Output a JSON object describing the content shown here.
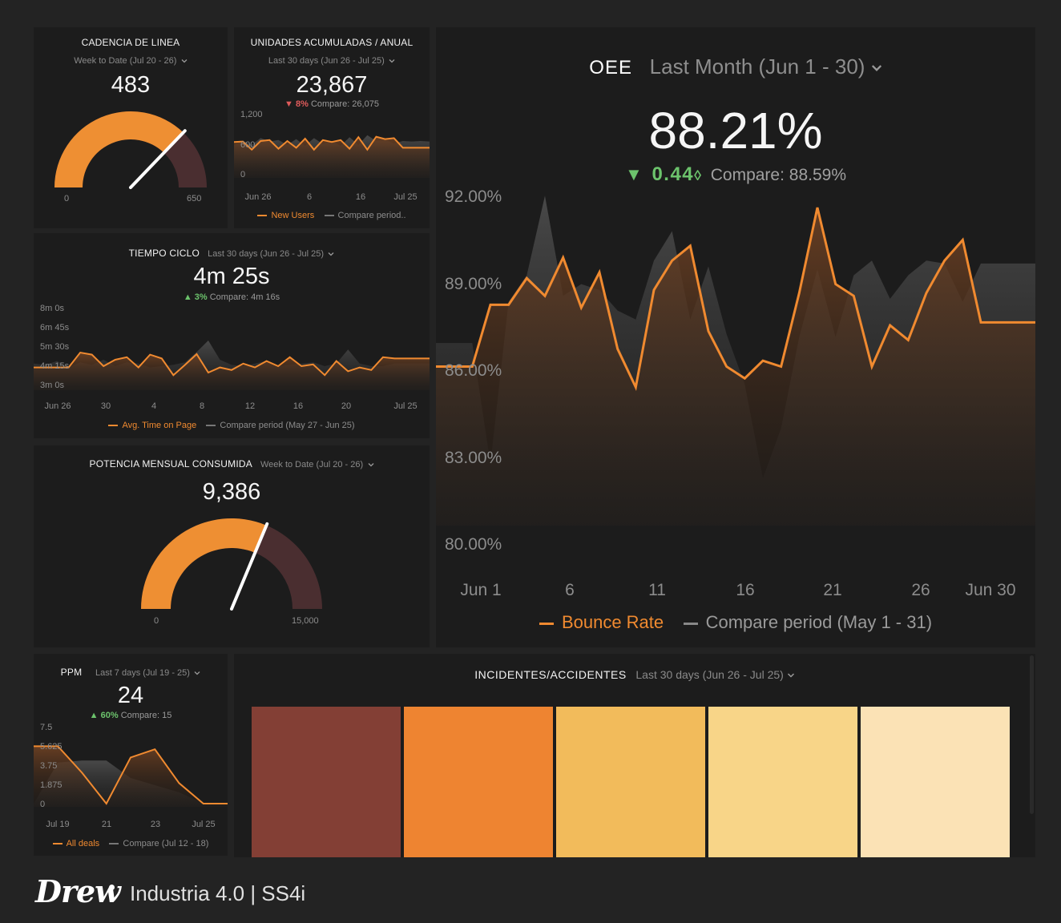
{
  "cadencia": {
    "title": "CADENCIA DE LINEA",
    "period": "Week to Date (Jul 20 - 26)",
    "value": "483",
    "min_label": "0",
    "max_label": "650",
    "gauge": {
      "min": 0,
      "max": 650,
      "value": 483
    }
  },
  "unidades": {
    "title": "UNIDADES ACUMULADAS / ANUAL",
    "period": "Last 30 days (Jun 26 - Jul 25)",
    "value": "23,867",
    "change": "8%",
    "change_dir": "down",
    "compare": "Compare: 26,075",
    "y_ticks": [
      "1,200",
      "600",
      "0"
    ],
    "x_ticks": [
      "Jun 26",
      "6",
      "16",
      "Jul 25"
    ],
    "legend_main": "New Users",
    "legend_compare": "Compare period..",
    "chart_data": {
      "type": "line",
      "ylim": [
        0,
        1200
      ],
      "series": [
        {
          "name": "New Users",
          "values": [
            680,
            690,
            520,
            700,
            720,
            540,
            700,
            560,
            750,
            520,
            720,
            680,
            720,
            540,
            780,
            520,
            790,
            740,
            760,
            560,
            560,
            560,
            560
          ]
        },
        {
          "name": "Compare period..",
          "values": [
            620,
            700,
            620,
            760,
            690,
            720,
            620,
            740,
            600,
            760,
            640,
            700,
            600,
            780,
            620,
            820,
            700,
            720,
            650,
            700,
            690,
            700,
            690
          ]
        }
      ]
    }
  },
  "tiempo": {
    "title": "TIEMPO CICLO",
    "period": "Last 30 days (Jun 26 - Jul 25)",
    "value": "4m 25s",
    "change": "3%",
    "change_dir": "up",
    "compare": "Compare: 4m 16s",
    "y_ticks": [
      "8m 0s",
      "6m 45s",
      "5m 30s",
      "4m 15s",
      "3m 0s"
    ],
    "x_ticks": [
      "Jun 26",
      "30",
      "4",
      "8",
      "12",
      "16",
      "20",
      "Jul 25"
    ],
    "legend_main": "Avg. Time on Page",
    "legend_compare": "Compare period (May 27 - Jun 25)",
    "chart_data": {
      "type": "line",
      "ylim": [
        180,
        480
      ],
      "series": [
        {
          "name": "Avg. Time on Page",
          "values": [
            250,
            250,
            250,
            250,
            308,
            300,
            255,
            280,
            290,
            250,
            300,
            285,
            220,
            260,
            302,
            230,
            250,
            240,
            265,
            250,
            275,
            255,
            290,
            255,
            262,
            220,
            275,
            235,
            250,
            240,
            290,
            285,
            285,
            285,
            285
          ]
        },
        {
          "name": "Compare period (May 27 - Jun 25)",
          "values": [
            265,
            260,
            275,
            250,
            270,
            260,
            280,
            255,
            270,
            265,
            250,
            255,
            260,
            270,
            310,
            355,
            280,
            260,
            255,
            265,
            275,
            255,
            260,
            265,
            270,
            255,
            265,
            320,
            265,
            255,
            255,
            265,
            265,
            265,
            265
          ]
        }
      ]
    }
  },
  "potencia": {
    "title": "POTENCIA MENSUAL CONSUMIDA",
    "period": "Week to Date (Jul 20 - 26)",
    "value": "9,386",
    "min_label": "0",
    "max_label": "15,000",
    "gauge": {
      "min": 0,
      "max": 15000,
      "value": 9386
    }
  },
  "ppm": {
    "title": "PPM",
    "period": "Last 7 days (Jul 19 - 25)",
    "value": "24",
    "change": "60%",
    "change_dir": "up",
    "compare": "Compare: 15",
    "y_ticks": [
      "7.5",
      "5.625",
      "3.75",
      "1.875",
      "0"
    ],
    "x_ticks": [
      "Jul 19",
      "21",
      "23",
      "Jul 25"
    ],
    "legend_main": "All deals",
    "legend_compare": "Compare (Jul 12 - 18)",
    "chart_data": {
      "type": "line",
      "ylim": [
        0,
        7.5
      ],
      "series": [
        {
          "name": "All deals",
          "values": [
            5.6,
            5.6,
            3.0,
            0,
            4.5,
            5.3,
            2.0,
            0,
            0
          ]
        },
        {
          "name": "Compare (Jul 12 - 18)",
          "values": [
            0,
            4.0,
            4.2,
            4.2,
            2.5,
            1.8,
            1.1,
            0,
            0
          ]
        }
      ]
    }
  },
  "oee": {
    "title": "OEE",
    "period": "Last Month (Jun 1 - 30)",
    "value": "88.21%",
    "change": "0.44",
    "change_dir": "down",
    "compare": "Compare: 88.59%",
    "y_ticks": [
      "92.00%",
      "89.00%",
      "86.00%",
      "83.00%",
      "80.00%"
    ],
    "x_ticks": [
      "Jun 1",
      "6",
      "11",
      "16",
      "21",
      "26",
      "Jun 30"
    ],
    "legend_main": "Bounce Rate",
    "legend_compare": "Compare period (May 1 - 31)",
    "chart_data": {
      "type": "area",
      "ylim": [
        80,
        92
      ],
      "series": [
        {
          "name": "Bounce Rate",
          "values": [
            86.0,
            86.0,
            86.0,
            88.1,
            88.1,
            89.0,
            88.4,
            89.7,
            88.0,
            89.2,
            86.6,
            85.3,
            88.6,
            89.6,
            90.1,
            87.2,
            86.0,
            85.6,
            86.2,
            86.0,
            88.5,
            91.4,
            88.8,
            88.4,
            86.0,
            87.4,
            86.9,
            88.5,
            89.6,
            90.3,
            87.5,
            87.5,
            87.5,
            87.5
          ]
        },
        {
          "name": "Compare period (May 1 - 31)",
          "values": [
            86.8,
            86.8,
            86.8,
            82.7,
            88.2,
            89.1,
            91.8,
            88.4,
            88.8,
            88.6,
            87.9,
            87.6,
            89.6,
            90.6,
            87.6,
            89.4,
            87.1,
            85.4,
            82.2,
            83.9,
            87.0,
            89.3,
            87.0,
            89.1,
            89.6,
            88.3,
            89.1,
            89.6,
            89.5,
            88.2,
            89.5,
            89.5,
            89.5,
            89.5
          ]
        }
      ]
    }
  },
  "incidentes": {
    "title": "INCIDENTES/ACCIDENTES",
    "period": "Last 30 days (Jun 26 - Jul 25)",
    "colors": [
      "#833f35",
      "#ee8431",
      "#f2bb5b",
      "#f8d588",
      "#fbe2b5"
    ]
  },
  "footer": {
    "logo": "Drew",
    "text": "Industria 4.0 | SS4i"
  },
  "theme": {
    "accent": "#f08a30",
    "compare": "#4a4a4a",
    "up": "#6cc36c",
    "down": "#e05b5b"
  }
}
